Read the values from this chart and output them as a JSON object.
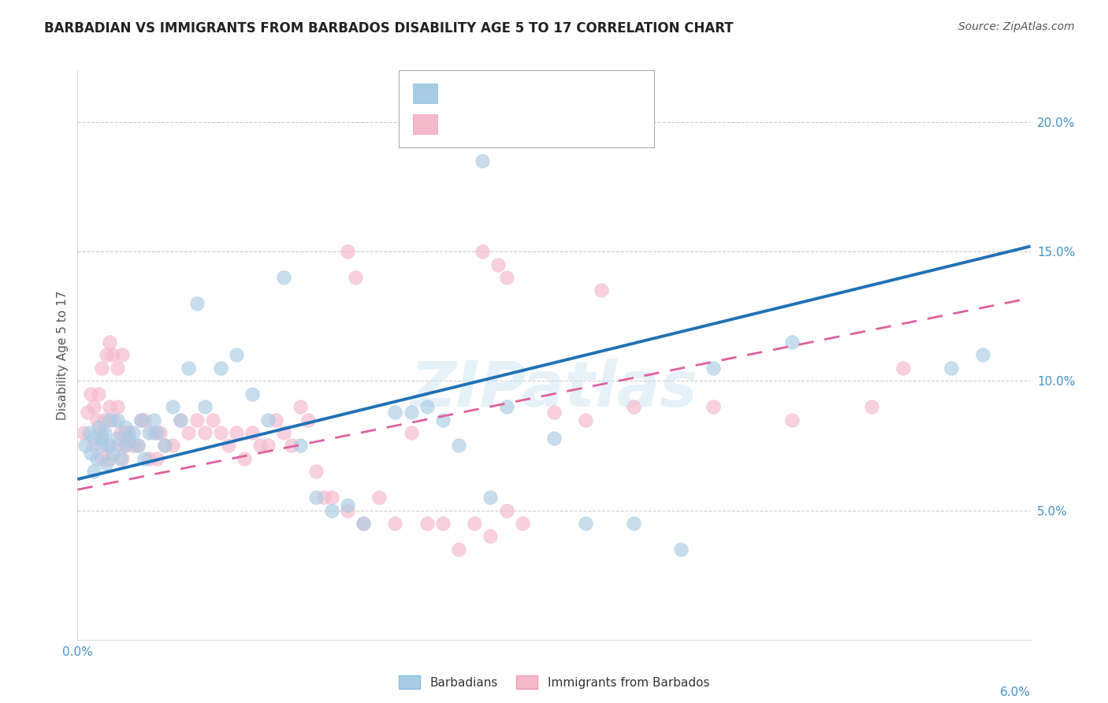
{
  "title": "BARBADIAN VS IMMIGRANTS FROM BARBADOS DISABILITY AGE 5 TO 17 CORRELATION CHART",
  "source": "Source: ZipAtlas.com",
  "watermark": "ZIPatlas",
  "blue_color": "#a8cce4",
  "pink_color": "#f5b8cb",
  "blue_line_color": "#2171b5",
  "pink_line_color": "#e05fa0",
  "label_color": "#4292c6",
  "title_color": "#222222",
  "grid_color": "#cccccc",
  "xlim": [
    0.0,
    6.0
  ],
  "ylim": [
    0.0,
    22.0
  ],
  "blue_line_x": [
    0.0,
    6.0
  ],
  "blue_line_y": [
    6.2,
    15.2
  ],
  "pink_line_x": [
    0.0,
    6.0
  ],
  "pink_line_y": [
    5.8,
    13.2
  ],
  "blue_pts_x": [
    0.05,
    0.07,
    0.08,
    0.1,
    0.1,
    0.12,
    0.13,
    0.15,
    0.15,
    0.17,
    0.18,
    0.2,
    0.2,
    0.22,
    0.25,
    0.25,
    0.27,
    0.3,
    0.3,
    0.32,
    0.35,
    0.38,
    0.4,
    0.42,
    0.45,
    0.48,
    0.5,
    0.55,
    0.6,
    0.65,
    0.7,
    0.75,
    0.8,
    0.9,
    1.0,
    1.1,
    1.2,
    1.3,
    1.4,
    1.5,
    1.6,
    1.7,
    1.8,
    2.0,
    2.1,
    2.2,
    2.3,
    2.4,
    2.6,
    2.7,
    3.0,
    3.2,
    3.5,
    3.8,
    4.0,
    4.5,
    5.5,
    5.7,
    2.55,
    2.65
  ],
  "blue_pts_y": [
    7.5,
    8.0,
    7.2,
    6.5,
    7.8,
    7.0,
    8.2,
    7.5,
    7.8,
    8.0,
    6.8,
    7.5,
    8.5,
    7.2,
    7.8,
    8.5,
    7.0,
    8.2,
    7.5,
    7.8,
    8.0,
    7.5,
    8.5,
    7.0,
    8.0,
    8.5,
    8.0,
    7.5,
    9.0,
    8.5,
    10.5,
    13.0,
    9.0,
    10.5,
    11.0,
    9.5,
    8.5,
    14.0,
    7.5,
    5.5,
    5.0,
    5.2,
    4.5,
    8.8,
    8.8,
    9.0,
    8.5,
    7.5,
    5.5,
    9.0,
    7.8,
    4.5,
    4.5,
    3.5,
    10.5,
    11.5,
    10.5,
    11.0,
    18.5,
    19.5
  ],
  "pink_pts_x": [
    0.04,
    0.06,
    0.08,
    0.1,
    0.1,
    0.12,
    0.13,
    0.15,
    0.15,
    0.17,
    0.18,
    0.2,
    0.2,
    0.22,
    0.25,
    0.25,
    0.27,
    0.28,
    0.3,
    0.3,
    0.32,
    0.35,
    0.38,
    0.4,
    0.42,
    0.45,
    0.48,
    0.5,
    0.52,
    0.55,
    0.6,
    0.65,
    0.7,
    0.75,
    0.8,
    0.85,
    0.9,
    0.95,
    1.0,
    1.05,
    1.1,
    1.15,
    1.2,
    1.25,
    1.3,
    1.35,
    1.4,
    1.45,
    1.5,
    1.55,
    1.6,
    1.7,
    1.8,
    1.9,
    2.0,
    2.1,
    2.2,
    2.3,
    2.4,
    2.5,
    2.6,
    2.7,
    2.8,
    3.0,
    3.2,
    3.5,
    4.0,
    4.5,
    5.0,
    5.2,
    1.7,
    1.75,
    2.55,
    2.65,
    2.7,
    3.3,
    0.15,
    0.18,
    0.2,
    0.22,
    0.25,
    0.28
  ],
  "pink_pts_y": [
    8.0,
    8.8,
    9.5,
    7.5,
    9.0,
    8.5,
    9.5,
    7.0,
    8.0,
    8.5,
    7.5,
    9.0,
    7.0,
    8.5,
    9.0,
    7.5,
    8.0,
    7.0,
    8.0,
    7.5,
    8.0,
    7.5,
    7.5,
    8.5,
    8.5,
    7.0,
    8.0,
    7.0,
    8.0,
    7.5,
    7.5,
    8.5,
    8.0,
    8.5,
    8.0,
    8.5,
    8.0,
    7.5,
    8.0,
    7.0,
    8.0,
    7.5,
    7.5,
    8.5,
    8.0,
    7.5,
    9.0,
    8.5,
    6.5,
    5.5,
    5.5,
    5.0,
    4.5,
    5.5,
    4.5,
    8.0,
    4.5,
    4.5,
    3.5,
    4.5,
    4.0,
    5.0,
    4.5,
    8.8,
    8.5,
    9.0,
    9.0,
    8.5,
    9.0,
    10.5,
    15.0,
    14.0,
    15.0,
    14.5,
    14.0,
    13.5,
    10.5,
    11.0,
    11.5,
    11.0,
    10.5,
    11.0
  ]
}
